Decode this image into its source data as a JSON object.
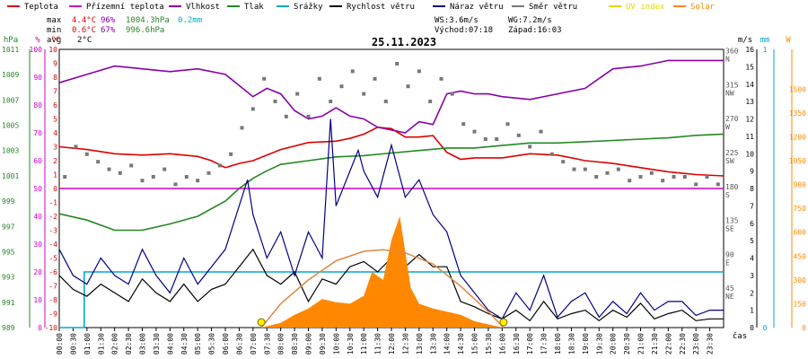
{
  "legend": [
    {
      "label": "Teplota",
      "color": "#dd0000"
    },
    {
      "label": "Přízemní teplota",
      "color": "#cc00cc"
    },
    {
      "label": "Vlhkost",
      "color": "#8800aa"
    },
    {
      "label": "Tlak",
      "color": "#228822"
    },
    {
      "label": "Srážky",
      "color": "#00aacc"
    },
    {
      "label": "Rychlost větru",
      "color": "#000000"
    },
    {
      "label": "Náraz větru",
      "color": "#000088"
    },
    {
      "label": "Směr větru",
      "color": "#777777"
    },
    {
      "label": "UV index",
      "color": "#e6d600"
    },
    {
      "label": "Solar",
      "color": "#ff8800"
    }
  ],
  "stats": {
    "max_label": "max",
    "min_label": "min",
    "avg_label": "avg",
    "max_temp": "4.4°C",
    "max_hum": "96%",
    "max_press": "1004.3hPa",
    "max_rain": "0.2mm",
    "min_temp": "0.6°C",
    "min_hum": "67%",
    "min_press": "996.6hPa",
    "avg_temp": "2°C"
  },
  "wind_info": {
    "ws": "WS:3.6m/s",
    "wg": "WG:7.2m/s",
    "sunrise": "Východ:07:18",
    "sunset": "Západ:16:03"
  },
  "chart_data": {
    "type": "line",
    "title": "25.11.2023",
    "xlabel": "čas",
    "x_ticks": [
      "00:00",
      "00:30",
      "01:00",
      "01:30",
      "02:00",
      "02:30",
      "03:00",
      "03:30",
      "04:00",
      "04:30",
      "05:00",
      "05:30",
      "06:00",
      "06:30",
      "07:00",
      "07:30",
      "08:00",
      "08:30",
      "09:00",
      "09:30",
      "10:00",
      "10:30",
      "11:00",
      "11:30",
      "12:00",
      "12:30",
      "13:00",
      "13:30",
      "14:00",
      "14:30",
      "15:00",
      "15:30",
      "16:00",
      "16:30",
      "17:00",
      "17:30",
      "18:00",
      "18:30",
      "19:00",
      "19:30",
      "20:00",
      "20:30",
      "21:00",
      "21:30",
      "22:00",
      "22:30",
      "23:00",
      "23:30"
    ],
    "axes": {
      "pressure": {
        "unit": "hPa",
        "range": [
          989,
          1011
        ],
        "ticks": [
          989,
          991,
          993,
          995,
          997,
          999,
          1001,
          1003,
          1005,
          1007,
          1009,
          1011
        ]
      },
      "humidity": {
        "unit": "%",
        "range": [
          0,
          100
        ],
        "ticks": [
          0,
          10,
          20,
          30,
          40,
          50,
          60,
          70,
          80,
          90,
          100
        ]
      },
      "temperature": {
        "unit": "°C",
        "range": [
          -10,
          10
        ],
        "ticks": [
          -10,
          -9,
          -8,
          -7,
          -6,
          -5,
          -4,
          -3,
          -2,
          -1,
          0,
          1,
          2,
          3,
          4,
          5,
          6,
          7,
          8,
          9,
          10
        ]
      },
      "direction": {
        "unit": "",
        "ticks": [
          {
            "v": 45,
            "l": "NE"
          },
          {
            "v": 90,
            "l": "E"
          },
          {
            "v": 135,
            "l": "SE"
          },
          {
            "v": 180,
            "l": "S"
          },
          {
            "v": 225,
            "l": "SW"
          },
          {
            "v": 270,
            "l": "W"
          },
          {
            "v": 315,
            "l": "NW"
          },
          {
            "v": 360,
            "l": "N"
          }
        ]
      },
      "wind_speed": {
        "unit": "m/s",
        "range": [
          0,
          16
        ],
        "ticks": [
          0,
          1,
          2,
          3,
          4,
          5,
          6,
          7,
          8,
          9,
          10,
          11,
          12,
          13,
          14,
          15,
          16
        ]
      },
      "rain": {
        "unit": "mm",
        "ticks": [
          0,
          1
        ]
      },
      "solar": {
        "unit": "W",
        "ticks": [
          0,
          150,
          300,
          450,
          600,
          750,
          900,
          1050,
          1200,
          1350,
          1500
        ]
      }
    },
    "series": [
      {
        "name": "Teplota",
        "axis": "temperature",
        "color": "#dd0000",
        "x": [
          0,
          1,
          2,
          3,
          4,
          5,
          5.5,
          6,
          6.5,
          7,
          8,
          9,
          10,
          10.5,
          11,
          11.5,
          12,
          12.5,
          13,
          13.5,
          14,
          14.5,
          15,
          16,
          17,
          18,
          19,
          20,
          21,
          22,
          23,
          24
        ],
        "y": [
          3,
          2.8,
          2.5,
          2.4,
          2.5,
          2.3,
          2,
          1.5,
          1.8,
          2,
          2.8,
          3.3,
          3.4,
          3.6,
          3.9,
          4.4,
          4.3,
          3.7,
          3.7,
          3.8,
          2.6,
          2.1,
          2.2,
          2.2,
          2.5,
          2.4,
          2,
          1.8,
          1.5,
          1.2,
          1,
          0.9
        ]
      },
      {
        "name": "Vlhkost",
        "axis": "humidity",
        "color": "#8800aa",
        "x": [
          0,
          1,
          2,
          3,
          4,
          5,
          6,
          6.5,
          7,
          7.5,
          8,
          8.5,
          9,
          9.5,
          10,
          10.5,
          11,
          11.5,
          12,
          12.5,
          13,
          13.5,
          14,
          14.5,
          15,
          15.5,
          16,
          17,
          18,
          19,
          20,
          21,
          22,
          23,
          24
        ],
        "y": [
          88,
          91,
          94,
          93,
          92,
          93,
          91,
          87,
          83,
          86,
          84,
          78,
          75,
          76,
          79,
          76,
          75,
          72,
          71,
          70,
          74,
          73,
          84,
          85,
          84,
          84,
          83,
          82,
          84,
          86,
          93,
          94,
          96,
          96,
          96
        ]
      },
      {
        "name": "Tlak",
        "axis": "pressure",
        "color": "#228822",
        "x": [
          0,
          1,
          2,
          3,
          4,
          5,
          6,
          6.5,
          7,
          7.5,
          8,
          9,
          10,
          11,
          12,
          13,
          14,
          15,
          16,
          17,
          18,
          19,
          20,
          21,
          22,
          23,
          24
        ],
        "y": [
          998,
          997.5,
          996.7,
          996.7,
          997.2,
          997.8,
          999,
          1000,
          1000.8,
          1001.4,
          1001.9,
          1002.2,
          1002.5,
          1002.6,
          1002.8,
          1003.0,
          1003.2,
          1003.2,
          1003.4,
          1003.6,
          1003.6,
          1003.7,
          1003.8,
          1003.9,
          1004.0,
          1004.2,
          1004.3
        ]
      },
      {
        "name": "Přízemní teplota",
        "axis": "temperature",
        "color": "#cc00cc",
        "x": [
          0,
          24
        ],
        "y": [
          0,
          0
        ]
      },
      {
        "name": "Srážky",
        "axis": "rain",
        "color": "#00aacc",
        "x": [
          0,
          0.9,
          0.9,
          24
        ],
        "y": [
          0,
          0,
          0.2,
          0.2
        ]
      },
      {
        "name": "Rychlost větru",
        "axis": "wind_speed",
        "color": "#000000",
        "x": [
          0,
          0.5,
          1,
          1.5,
          2,
          2.5,
          3,
          3.5,
          4,
          4.5,
          5,
          5.5,
          6,
          6.5,
          7,
          7.5,
          8,
          8.5,
          9,
          9.5,
          10,
          10.5,
          11,
          11.5,
          12,
          12.5,
          13,
          13.5,
          14,
          14.5,
          15,
          15.5,
          16,
          16.5,
          17,
          17.5,
          18,
          18.5,
          19,
          19.5,
          20,
          20.5,
          21,
          21.5,
          22,
          22.5,
          23,
          23.5,
          24
        ],
        "y": [
          3,
          2.2,
          1.8,
          2.5,
          2,
          1.5,
          2.8,
          2,
          1.5,
          2.5,
          1.5,
          2.2,
          2.5,
          3.5,
          4.5,
          3,
          2.5,
          3.2,
          1.5,
          2.8,
          2.5,
          3.5,
          3.8,
          3.2,
          4,
          3.5,
          4.2,
          3.5,
          3.5,
          1.5,
          1.2,
          0.8,
          0.5,
          1,
          0.4,
          1.5,
          0.5,
          0.8,
          1,
          0.4,
          1,
          0.6,
          1.4,
          0.5,
          0.8,
          1,
          0.4,
          0.5,
          0.5
        ]
      },
      {
        "name": "Náraz větru",
        "axis": "wind_speed",
        "color": "#000088",
        "x": [
          0,
          0.5,
          1,
          1.5,
          2,
          2.5,
          3,
          3.5,
          4,
          4.5,
          5,
          5.5,
          6,
          6.5,
          6.8,
          7,
          7.5,
          8,
          8.5,
          9,
          9.5,
          9.8,
          10,
          10.5,
          10.8,
          11,
          11.5,
          12,
          12.5,
          13,
          13.5,
          14,
          14.5,
          15,
          15.5,
          16,
          16.5,
          17,
          17.5,
          18,
          18.5,
          19,
          19.5,
          20,
          20.5,
          21,
          21.5,
          22,
          22.5,
          23,
          23.5,
          24
        ],
        "y": [
          4.5,
          3,
          2.5,
          4,
          3,
          2.5,
          4.5,
          3,
          2,
          4,
          2.5,
          3.5,
          4.5,
          7,
          8.5,
          6.5,
          4,
          5.5,
          3,
          5.5,
          4,
          12,
          7,
          9,
          10.2,
          9,
          7.5,
          10.5,
          7.5,
          8.5,
          6.5,
          5.5,
          3,
          2,
          1,
          0.5,
          2,
          1,
          3,
          0.6,
          1.5,
          2,
          0.6,
          1.5,
          0.8,
          2,
          1,
          1.5,
          1.5,
          0.7,
          1,
          1
        ]
      },
      {
        "name": "Solar",
        "axis": "solar",
        "color": "#ff8800",
        "x": [
          7.3,
          8,
          8.5,
          9,
          9.5,
          10,
          10.5,
          11,
          11.3,
          11.7,
          12,
          12.3,
          12.7,
          13,
          13.5,
          14,
          14.5,
          15,
          15.5,
          16.05
        ],
        "y": [
          0,
          30,
          80,
          120,
          180,
          160,
          150,
          200,
          350,
          300,
          550,
          700,
          250,
          150,
          120,
          100,
          80,
          40,
          20,
          0
        ]
      },
      {
        "name": "Solar",
        "axis": "solar",
        "color": "#dd8844",
        "x": [
          7.3,
          8,
          9,
          10,
          11,
          11.7,
          12.5,
          13.5,
          14.5,
          15.5,
          16.05
        ],
        "y": [
          0,
          150,
          300,
          420,
          480,
          490,
          470,
          400,
          260,
          100,
          0
        ]
      },
      {
        "name": "Směr větru",
        "axis": "direction",
        "color": "#777777",
        "x": [
          0.2,
          0.6,
          1.0,
          1.4,
          1.8,
          2.2,
          2.6,
          3.0,
          3.4,
          3.8,
          4.2,
          4.6,
          5.0,
          5.4,
          5.8,
          6.2,
          6.6,
          7.0,
          7.4,
          7.8,
          8.2,
          8.6,
          9.0,
          9.4,
          9.8,
          10.2,
          10.6,
          11.0,
          11.4,
          11.8,
          12.2,
          12.6,
          13.0,
          13.4,
          13.8,
          14.2,
          14.6,
          15.0,
          15.4,
          15.8,
          16.2,
          16.6,
          17.0,
          17.4,
          17.8,
          18.2,
          18.6,
          19.0,
          19.4,
          19.8,
          20.2,
          20.6,
          21.0,
          21.4,
          21.8,
          22.2,
          22.6,
          23.0,
          23.4,
          23.8
        ],
        "y": [
          200,
          240,
          230,
          220,
          210,
          205,
          215,
          195,
          200,
          210,
          190,
          200,
          195,
          205,
          215,
          230,
          265,
          290,
          330,
          300,
          280,
          310,
          280,
          330,
          300,
          320,
          340,
          310,
          330,
          300,
          350,
          320,
          340,
          300,
          330,
          310,
          270,
          260,
          250,
          250,
          270,
          255,
          240,
          260,
          230,
          220,
          210,
          210,
          200,
          205,
          210,
          195,
          200,
          205,
          195,
          200,
          200,
          190,
          200,
          190
        ]
      }
    ],
    "markers": [
      {
        "name": "Východ",
        "x": 7.3
      },
      {
        "name": "Západ",
        "x": 16.05
      }
    ]
  }
}
